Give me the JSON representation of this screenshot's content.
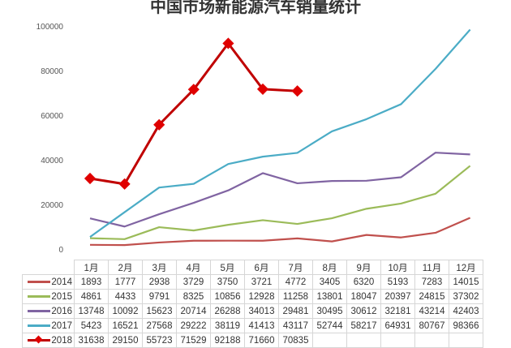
{
  "title": "中国市场新能源汽车销量统计",
  "chart_data": {
    "type": "line",
    "title": "中国市场新能源汽车销量统计",
    "xlabel": "",
    "ylabel": "",
    "ylim": [
      0,
      100000
    ],
    "yticks": [
      0,
      20000,
      40000,
      60000,
      80000,
      100000
    ],
    "grid": false,
    "legend_position": "table-left",
    "categories": [
      "1月",
      "2月",
      "3月",
      "4月",
      "5月",
      "6月",
      "7月",
      "8月",
      "9月",
      "10月",
      "11月",
      "12月"
    ],
    "series": [
      {
        "name": "2014",
        "color": "#c0504d",
        "marker": "none",
        "values": [
          1893,
          1777,
          2938,
          3729,
          3750,
          3721,
          4772,
          3405,
          6320,
          5193,
          7283,
          14015
        ]
      },
      {
        "name": "2015",
        "color": "#9bbb59",
        "marker": "none",
        "values": [
          4861,
          4433,
          9791,
          8325,
          10856,
          12928,
          11258,
          13801,
          18047,
          20397,
          24815,
          37302
        ]
      },
      {
        "name": "2016",
        "color": "#8064a2",
        "marker": "none",
        "values": [
          13748,
          10092,
          15623,
          20714,
          26288,
          34013,
          29481,
          30495,
          30612,
          32181,
          43214,
          42403
        ]
      },
      {
        "name": "2017",
        "color": "#4bacc6",
        "marker": "none",
        "values": [
          5423,
          16521,
          27568,
          29222,
          38119,
          41413,
          43117,
          52744,
          58217,
          64931,
          80767,
          98366
        ]
      },
      {
        "name": "2018",
        "color": "#e00000",
        "marker": "diamond",
        "values": [
          31638,
          29150,
          55723,
          71529,
          92188,
          71660,
          70835,
          null,
          null,
          null,
          null,
          null
        ]
      }
    ]
  },
  "table": {
    "months": [
      "1月",
      "2月",
      "3月",
      "4月",
      "5月",
      "6月",
      "7月",
      "8月",
      "9月",
      "10月",
      "11月",
      "12月"
    ],
    "rows": [
      {
        "label": "2014",
        "cells": [
          "1893",
          "1777",
          "2938",
          "3729",
          "3750",
          "3721",
          "4772",
          "3405",
          "6320",
          "5193",
          "7283",
          "14015"
        ]
      },
      {
        "label": "2015",
        "cells": [
          "4861",
          "4433",
          "9791",
          "8325",
          "10856",
          "12928",
          "11258",
          "13801",
          "18047",
          "20397",
          "24815",
          "37302"
        ]
      },
      {
        "label": "2016",
        "cells": [
          "13748",
          "10092",
          "15623",
          "20714",
          "26288",
          "34013",
          "29481",
          "30495",
          "30612",
          "32181",
          "43214",
          "42403"
        ]
      },
      {
        "label": "2017",
        "cells": [
          "5423",
          "16521",
          "27568",
          "29222",
          "38119",
          "41413",
          "43117",
          "52744",
          "58217",
          "64931",
          "80767",
          "98366"
        ]
      },
      {
        "label": "2018",
        "cells": [
          "31638",
          "29150",
          "55723",
          "71529",
          "92188",
          "71660",
          "70835",
          "",
          "",
          "",
          "",
          ""
        ]
      }
    ]
  },
  "y_axis": {
    "ticks": [
      "100000",
      "80000",
      "60000",
      "40000",
      "20000",
      "0"
    ]
  }
}
